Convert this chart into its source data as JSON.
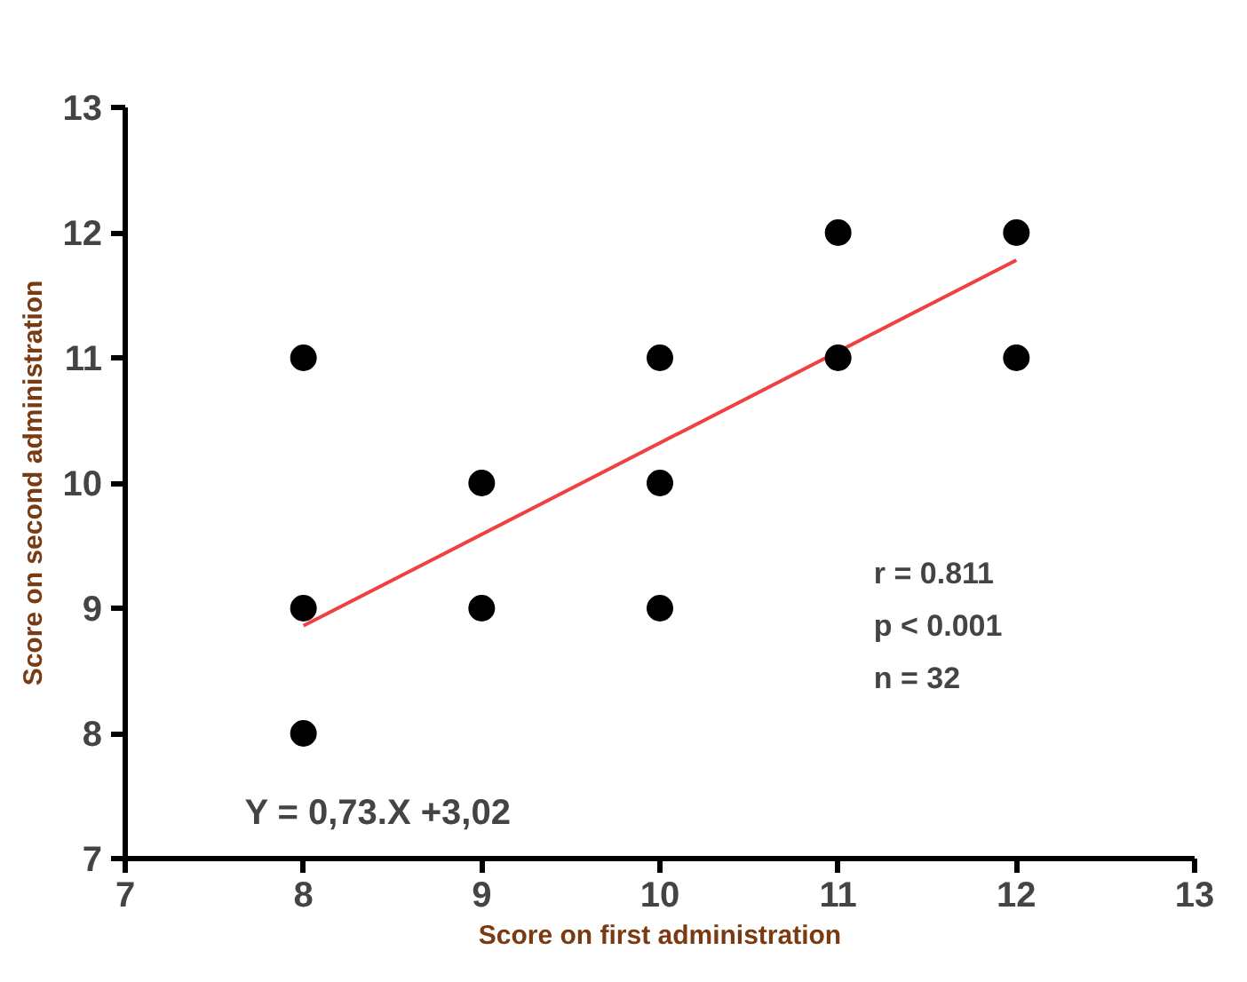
{
  "chart_data": {
    "type": "scatter",
    "xlabel": "Score on first administration",
    "ylabel": "Score on second administration",
    "xlim": [
      7,
      13
    ],
    "ylim": [
      7,
      13
    ],
    "xticks": [
      7,
      8,
      9,
      10,
      11,
      12,
      13
    ],
    "yticks": [
      7,
      8,
      9,
      10,
      11,
      12,
      13
    ],
    "grid": false,
    "series": [
      {
        "marker": "circle",
        "color": "#000000",
        "x": [
          8,
          8,
          8,
          9,
          9,
          10,
          10,
          10,
          11,
          11,
          12,
          12
        ],
        "values": [
          11,
          9,
          8,
          10,
          9,
          11,
          10,
          9,
          12,
          11,
          12,
          11
        ]
      },
      {
        "type": "line",
        "color": "#f04040",
        "line_style": "solid",
        "x": [
          8,
          12
        ],
        "values": [
          8.86,
          11.78
        ]
      }
    ],
    "annotations": [
      "Y = 0,73.X +3,02",
      "r = 0.811",
      "p < 0.001",
      "n = 32"
    ]
  }
}
